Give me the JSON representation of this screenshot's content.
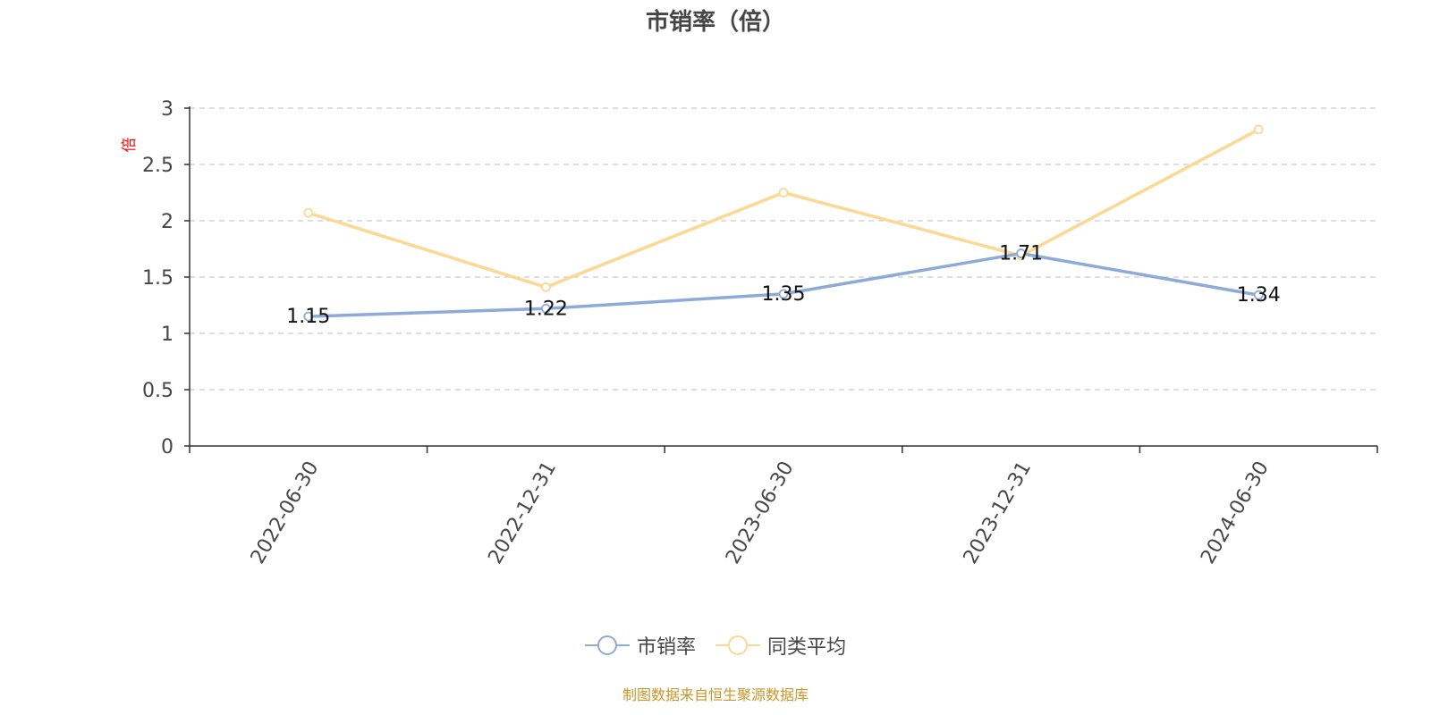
{
  "chart_data": {
    "type": "line",
    "title": "市销率（倍）",
    "ylabel": "倍",
    "xlabel": "",
    "categories": [
      "2022-06-30",
      "2022-12-31",
      "2023-06-30",
      "2023-12-31",
      "2024-06-30"
    ],
    "ylim": [
      0,
      3
    ],
    "yticks": [
      "0",
      "0.5",
      "1",
      "1.5",
      "2",
      "2.5",
      "3"
    ],
    "grid": true,
    "legend_position": "bottom",
    "series": [
      {
        "name": "市销率",
        "values": [
          1.15,
          1.22,
          1.35,
          1.71,
          1.34
        ],
        "color": "#8eaad8",
        "labels": [
          "1.15",
          "1.22",
          "1.35",
          "1.71",
          "1.34"
        ]
      },
      {
        "name": "同类平均",
        "values": [
          2.07,
          1.41,
          2.25,
          1.69,
          2.81
        ],
        "color": "#fcd893"
      }
    ]
  },
  "source_note": "制图数据来自恒生聚源数据库"
}
